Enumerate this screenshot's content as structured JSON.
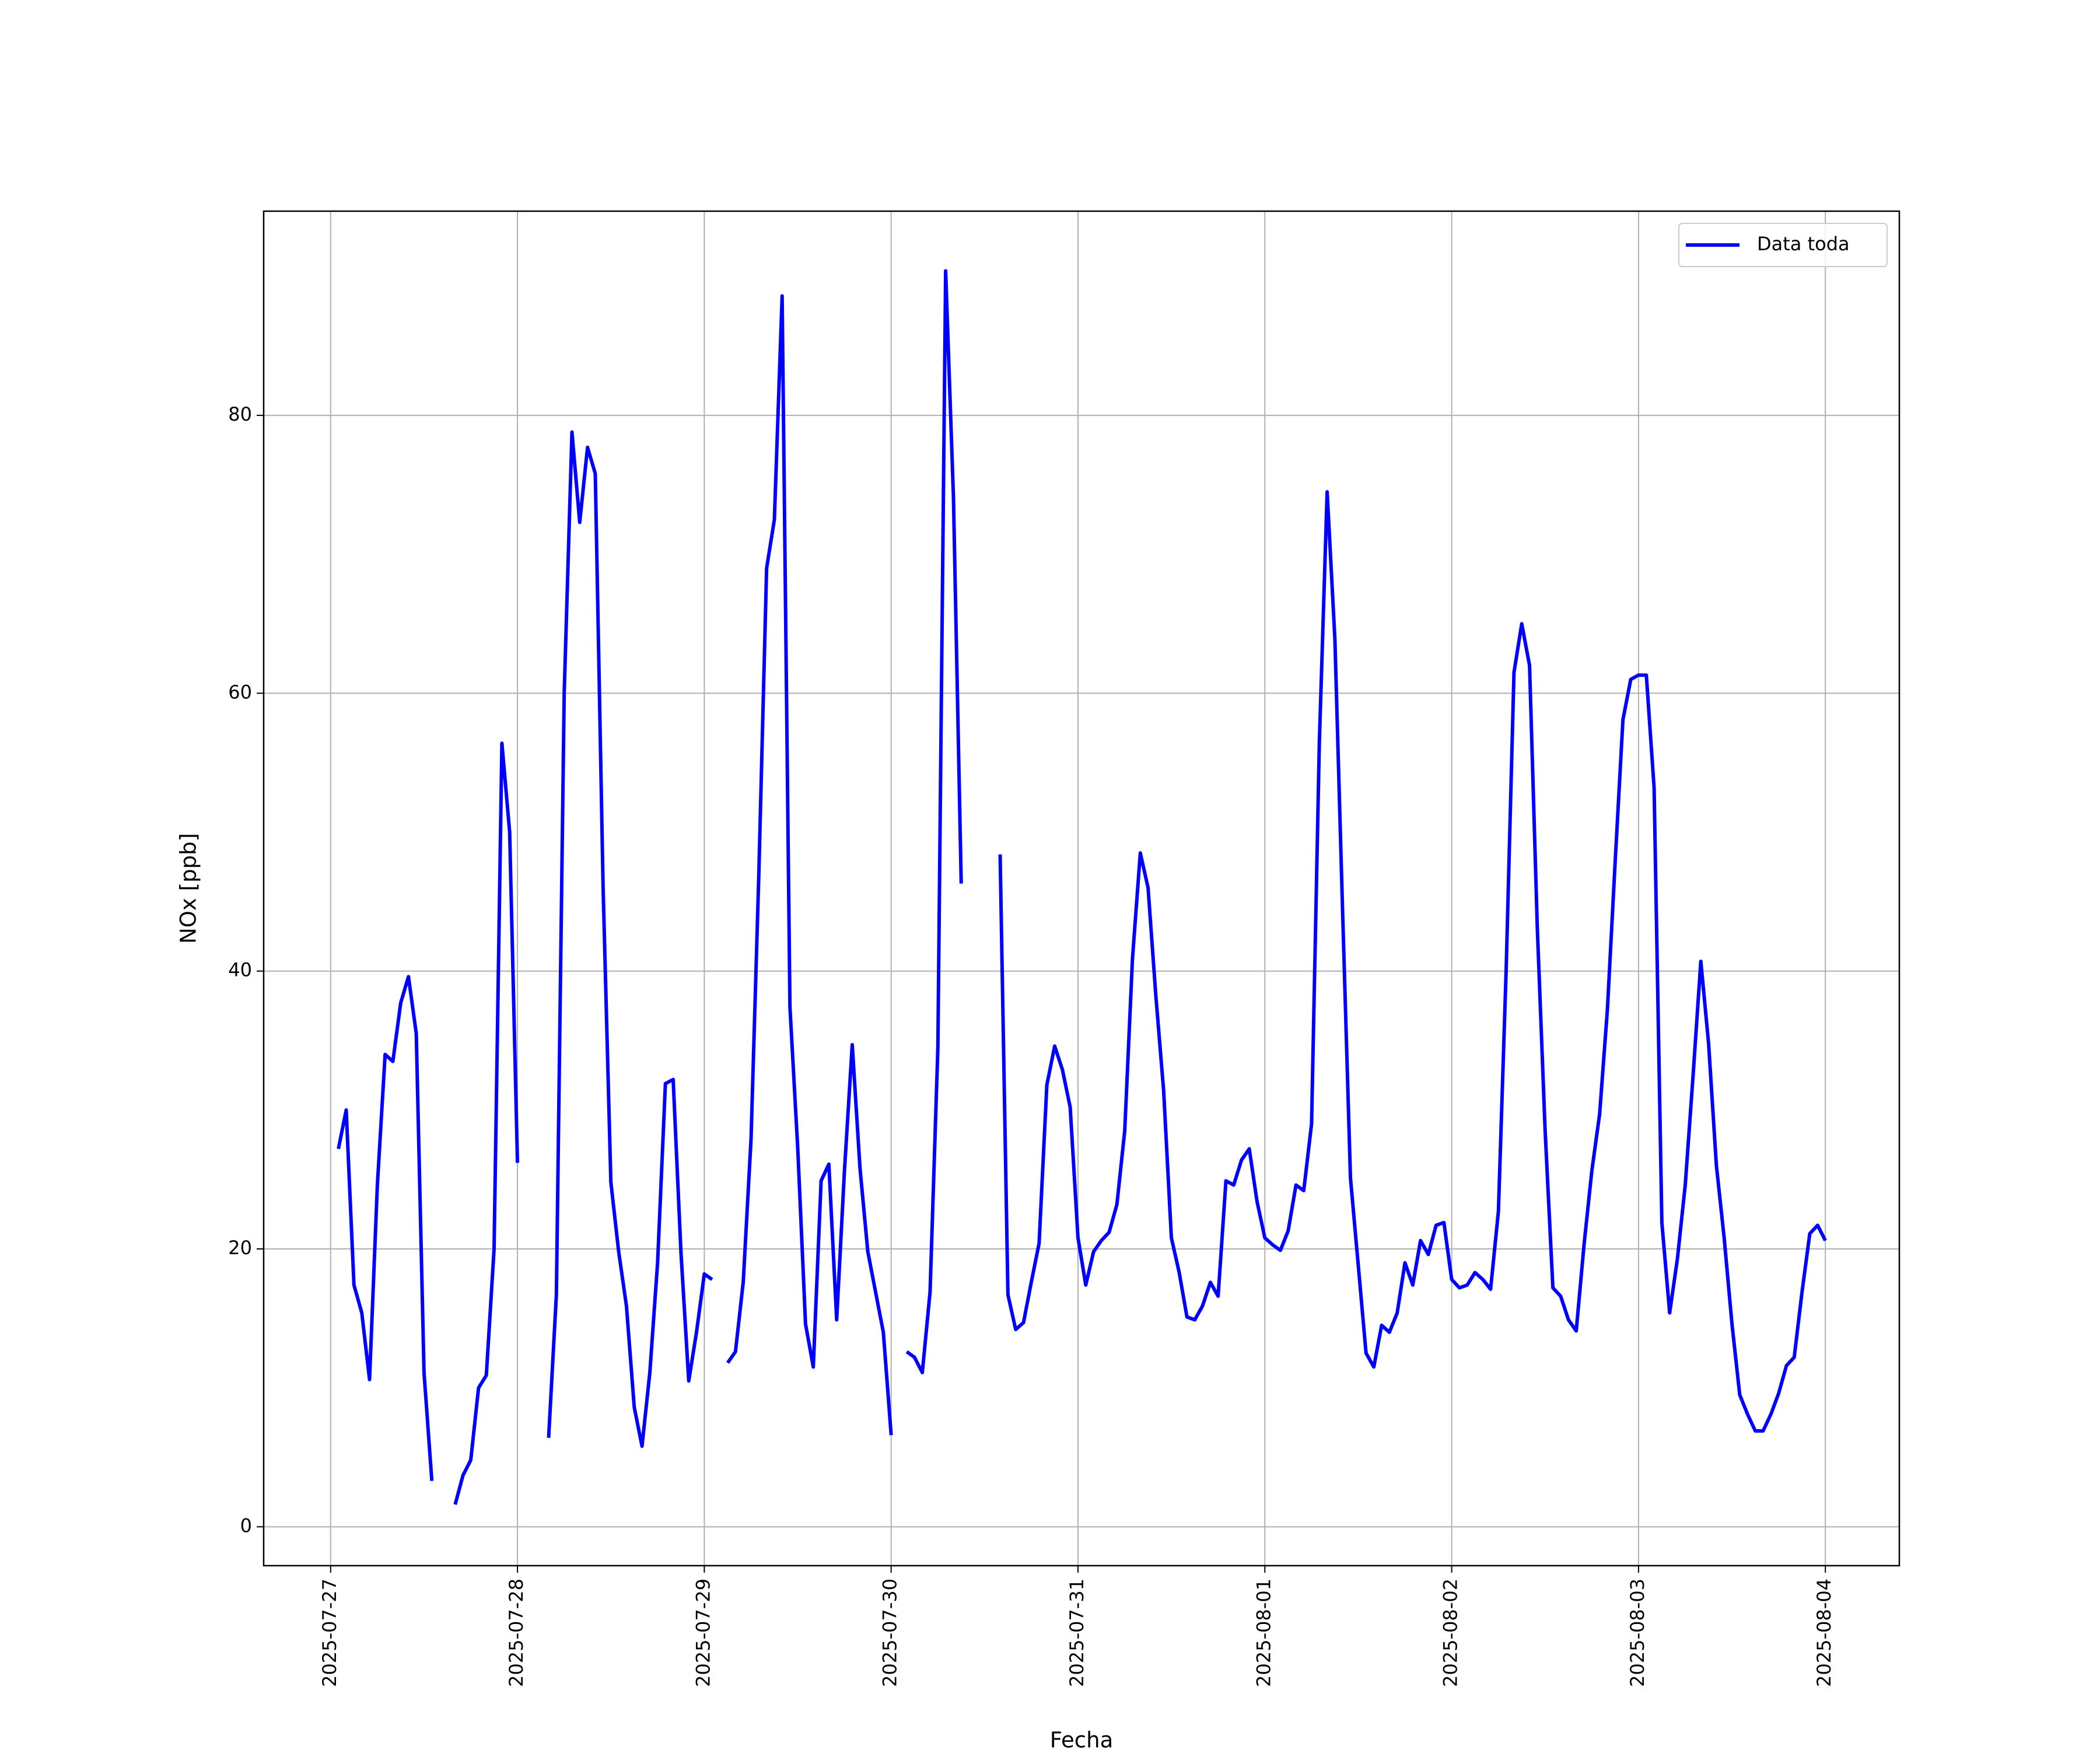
{
  "chart_data": {
    "type": "line",
    "xlabel": "Fecha",
    "ylabel": "NOx [ppb]",
    "x": [
      "2025-07-27 01:00",
      "2025-07-27 02:00",
      "2025-07-27 03:00",
      "2025-07-27 04:00",
      "2025-07-27 05:00",
      "2025-07-27 06:00",
      "2025-07-27 07:00",
      "2025-07-27 08:00",
      "2025-07-27 09:00",
      "2025-07-27 10:00",
      "2025-07-27 11:00",
      "2025-07-27 12:00",
      "2025-07-27 13:00",
      "2025-07-27 14:00",
      "2025-07-27 15:00",
      "2025-07-27 16:00",
      "2025-07-27 17:00",
      "2025-07-27 18:00",
      "2025-07-27 19:00",
      "2025-07-27 20:00",
      "2025-07-27 21:00",
      "2025-07-27 22:00",
      "2025-07-27 23:00",
      "2025-07-28 00:00",
      "2025-07-28 01:00",
      "2025-07-28 02:00",
      "2025-07-28 03:00",
      "2025-07-28 04:00",
      "2025-07-28 05:00",
      "2025-07-28 06:00",
      "2025-07-28 07:00",
      "2025-07-28 08:00",
      "2025-07-28 09:00",
      "2025-07-28 10:00",
      "2025-07-28 11:00",
      "2025-07-28 12:00",
      "2025-07-28 13:00",
      "2025-07-28 14:00",
      "2025-07-28 15:00",
      "2025-07-28 16:00",
      "2025-07-28 17:00",
      "2025-07-28 18:00",
      "2025-07-28 19:00",
      "2025-07-28 20:00",
      "2025-07-28 21:00",
      "2025-07-28 22:00",
      "2025-07-28 23:00",
      "2025-07-29 00:00",
      "2025-07-29 01:00",
      "2025-07-29 02:00",
      "2025-07-29 03:00",
      "2025-07-29 04:00",
      "2025-07-29 05:00",
      "2025-07-29 06:00",
      "2025-07-29 07:00",
      "2025-07-29 08:00",
      "2025-07-29 09:00",
      "2025-07-29 10:00",
      "2025-07-29 11:00",
      "2025-07-29 12:00",
      "2025-07-29 13:00",
      "2025-07-29 14:00",
      "2025-07-29 15:00",
      "2025-07-29 16:00",
      "2025-07-29 17:00",
      "2025-07-29 18:00",
      "2025-07-29 19:00",
      "2025-07-29 20:00",
      "2025-07-29 21:00",
      "2025-07-29 22:00",
      "2025-07-29 23:00",
      "2025-07-30 00:00",
      "2025-07-30 01:00",
      "2025-07-30 02:00",
      "2025-07-30 03:00",
      "2025-07-30 04:00",
      "2025-07-30 05:00",
      "2025-07-30 06:00",
      "2025-07-30 07:00",
      "2025-07-30 08:00",
      "2025-07-30 09:00",
      "2025-07-30 10:00",
      "2025-07-30 11:00",
      "2025-07-30 12:00",
      "2025-07-30 13:00",
      "2025-07-30 14:00",
      "2025-07-30 15:00",
      "2025-07-30 16:00",
      "2025-07-30 17:00",
      "2025-07-30 18:00",
      "2025-07-30 19:00",
      "2025-07-30 20:00",
      "2025-07-30 21:00",
      "2025-07-30 22:00",
      "2025-07-30 23:00",
      "2025-07-31 00:00",
      "2025-07-31 01:00",
      "2025-07-31 02:00",
      "2025-07-31 03:00",
      "2025-07-31 04:00",
      "2025-07-31 05:00",
      "2025-07-31 06:00",
      "2025-07-31 07:00",
      "2025-07-31 08:00",
      "2025-07-31 09:00",
      "2025-07-31 10:00",
      "2025-07-31 11:00",
      "2025-07-31 12:00",
      "2025-07-31 13:00",
      "2025-07-31 14:00",
      "2025-07-31 15:00",
      "2025-07-31 16:00",
      "2025-07-31 17:00",
      "2025-07-31 18:00",
      "2025-07-31 19:00",
      "2025-07-31 20:00",
      "2025-07-31 21:00",
      "2025-07-31 22:00",
      "2025-07-31 23:00",
      "2025-08-01 00:00",
      "2025-08-01 01:00",
      "2025-08-01 02:00",
      "2025-08-01 03:00",
      "2025-08-01 04:00",
      "2025-08-01 05:00",
      "2025-08-01 06:00",
      "2025-08-01 07:00",
      "2025-08-01 08:00",
      "2025-08-01 09:00",
      "2025-08-01 10:00",
      "2025-08-01 11:00",
      "2025-08-01 12:00",
      "2025-08-01 13:00",
      "2025-08-01 14:00",
      "2025-08-01 15:00",
      "2025-08-01 16:00",
      "2025-08-01 17:00",
      "2025-08-01 18:00",
      "2025-08-01 19:00",
      "2025-08-01 20:00",
      "2025-08-01 21:00",
      "2025-08-01 22:00",
      "2025-08-01 23:00",
      "2025-08-02 00:00",
      "2025-08-02 01:00",
      "2025-08-02 02:00",
      "2025-08-02 03:00",
      "2025-08-02 04:00",
      "2025-08-02 05:00",
      "2025-08-02 06:00",
      "2025-08-02 07:00",
      "2025-08-02 08:00",
      "2025-08-02 09:00",
      "2025-08-02 10:00",
      "2025-08-02 11:00",
      "2025-08-02 12:00",
      "2025-08-02 13:00",
      "2025-08-02 14:00",
      "2025-08-02 15:00",
      "2025-08-02 16:00",
      "2025-08-02 17:00",
      "2025-08-02 18:00",
      "2025-08-02 19:00",
      "2025-08-02 20:00",
      "2025-08-02 21:00",
      "2025-08-02 22:00",
      "2025-08-02 23:00",
      "2025-08-03 00:00",
      "2025-08-03 01:00",
      "2025-08-03 02:00",
      "2025-08-03 03:00",
      "2025-08-03 04:00",
      "2025-08-03 05:00",
      "2025-08-03 06:00",
      "2025-08-03 07:00",
      "2025-08-03 08:00",
      "2025-08-03 09:00",
      "2025-08-03 10:00",
      "2025-08-03 11:00",
      "2025-08-03 12:00",
      "2025-08-03 13:00",
      "2025-08-03 14:00",
      "2025-08-03 15:00",
      "2025-08-03 16:00",
      "2025-08-03 17:00",
      "2025-08-03 18:00",
      "2025-08-03 19:00",
      "2025-08-03 20:00",
      "2025-08-03 21:00",
      "2025-08-03 22:00",
      "2025-08-03 23:00",
      "2025-08-04 00:00"
    ],
    "series": [
      {
        "name": "Data toda",
        "color": "#0000ff",
        "values": [
          27.2,
          30.0,
          17.4,
          15.4,
          10.6,
          24.6,
          34.0,
          33.5,
          37.7,
          39.6,
          35.5,
          11.1,
          3.3,
          null,
          null,
          1.6,
          3.7,
          4.8,
          10.0,
          10.9,
          20.0,
          56.4,
          50.0,
          26.2,
          null,
          null,
          null,
          6.4,
          16.7,
          60.0,
          78.8,
          72.3,
          77.7,
          75.8,
          46.0,
          24.8,
          19.8,
          15.9,
          8.6,
          5.8,
          11.1,
          19.0,
          31.9,
          32.2,
          19.8,
          10.5,
          14.0,
          18.2,
          17.8,
          null,
          11.8,
          12.6,
          17.6,
          27.9,
          46.9,
          69.0,
          72.5,
          88.6,
          37.4,
          27.3,
          14.6,
          11.5,
          24.9,
          26.1,
          14.9,
          25.6,
          34.7,
          25.8,
          19.8,
          16.9,
          14.0,
          6.6,
          null,
          12.6,
          12.2,
          11.1,
          16.9,
          34.5,
          90.4,
          74.1,
          46.3,
          null,
          null,
          null,
          null,
          48.4,
          16.7,
          14.2,
          14.7,
          17.6,
          20.4,
          31.8,
          34.6,
          32.9,
          30.2,
          20.8,
          17.4,
          19.8,
          20.6,
          21.2,
          23.2,
          28.5,
          40.9,
          48.5,
          46.0,
          38.2,
          31.4,
          20.8,
          18.3,
          15.1,
          14.9,
          15.9,
          17.6,
          16.6,
          24.9,
          24.6,
          26.4,
          27.2,
          23.4,
          20.8,
          20.3,
          19.9,
          21.3,
          24.6,
          24.2,
          29.0,
          56.4,
          74.5,
          63.9,
          44.0,
          25.1,
          18.8,
          12.5,
          11.5,
          14.5,
          14.0,
          15.4,
          19.0,
          17.4,
          20.6,
          19.6,
          21.7,
          21.9,
          17.8,
          17.2,
          17.4,
          18.3,
          17.8,
          17.1,
          22.7,
          40.1,
          61.5,
          65.0,
          62.0,
          43.1,
          28.5,
          17.2,
          16.6,
          14.9,
          14.1,
          20.3,
          25.6,
          29.7,
          37.2,
          47.9,
          58.1,
          61.0,
          61.3,
          61.3,
          53.2,
          21.9,
          15.4,
          19.3,
          24.6,
          32.4,
          40.7,
          34.8,
          26.0,
          20.8,
          14.6,
          9.5,
          8.1,
          6.9,
          6.9,
          8.1,
          9.6,
          11.6,
          12.2,
          16.9,
          21.1,
          21.7,
          20.6
        ]
      }
    ],
    "xlim": [
      "2025-07-26 15:24",
      "2025-08-04 09:30"
    ],
    "xticks": [
      "2025-07-27",
      "2025-07-28",
      "2025-07-29",
      "2025-07-30",
      "2025-07-31",
      "2025-08-01",
      "2025-08-02",
      "2025-08-03",
      "2025-08-04"
    ],
    "ylim": [
      -2.8,
      94.7
    ],
    "yticks": [
      0,
      20,
      40,
      60,
      80
    ],
    "grid": true,
    "legend": "upper right"
  }
}
